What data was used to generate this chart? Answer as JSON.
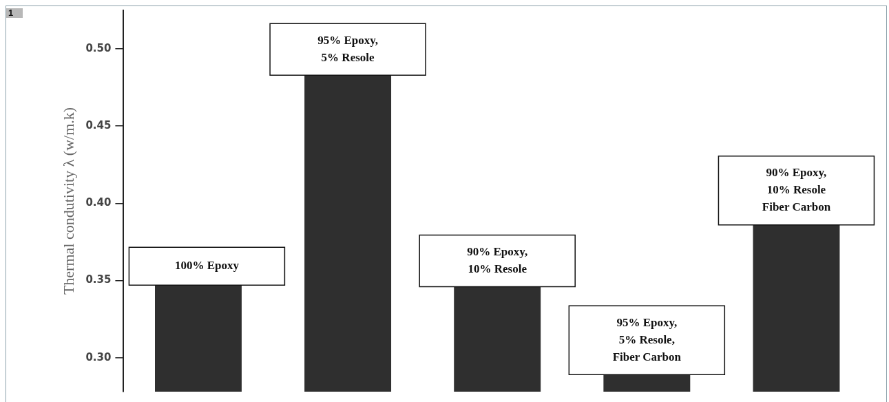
{
  "chart_data": {
    "type": "bar",
    "ylabel": "Thermal condutivity λ (w/m.k)",
    "categories": [
      "100% Epoxy",
      "95% Epoxy,\n5% Resole",
      "90% Epoxy,\n10% Resole",
      "95% Epoxy,\n5% Resole,\nFiber Carbon",
      "90% Epoxy,\n10% Resole\nFiber Carbon"
    ],
    "values": [
      0.347,
      0.483,
      0.346,
      0.289,
      0.386
    ],
    "color": "#2f2f2f",
    "ylim": [
      0.278,
      0.525
    ],
    "yticks": [
      {
        "value": 0.3,
        "label": "0.30"
      },
      0.35,
      {
        "value": 0.4,
        "label": "0.40"
      },
      0.45,
      {
        "value": 0.5,
        "label": "0.50"
      }
    ],
    "tick_labels": "y",
    "grid": false,
    "legend": false,
    "annotations": [
      "1"
    ]
  }
}
